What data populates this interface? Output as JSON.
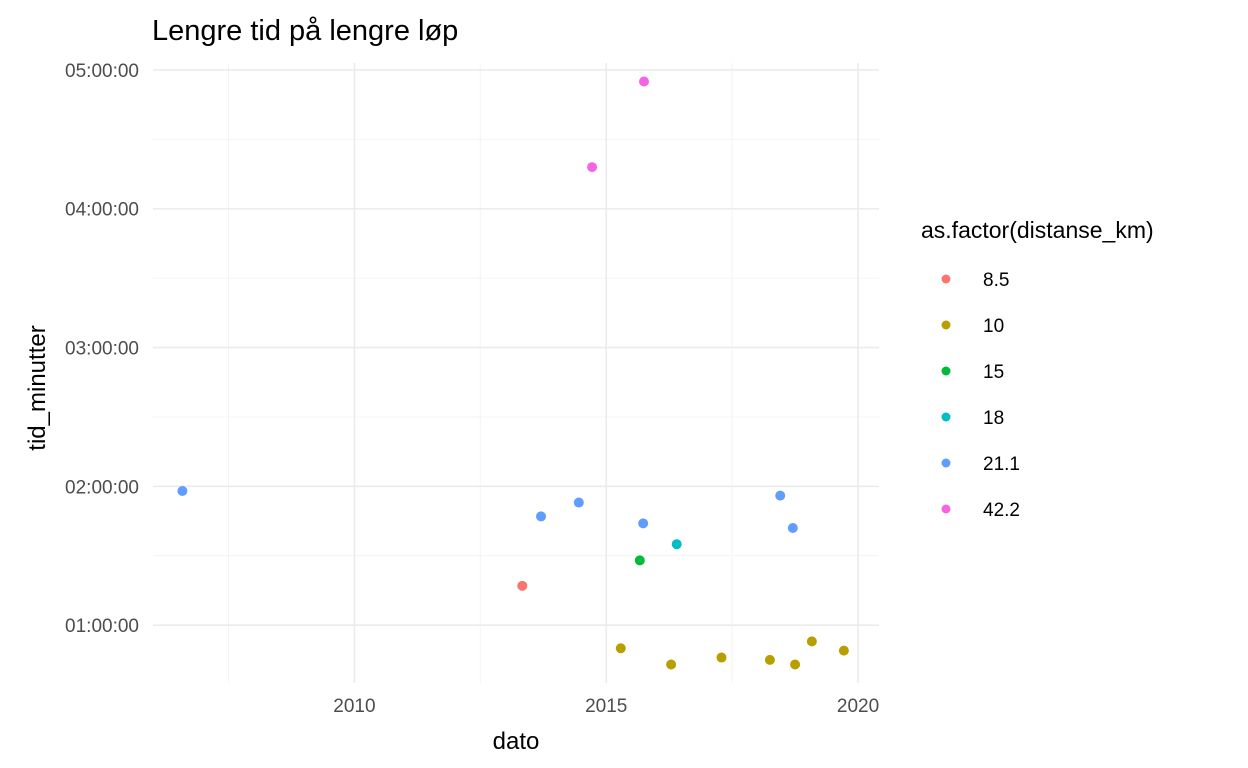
{
  "chart_data": {
    "type": "scatter",
    "title": "Lengre tid på lengre løp",
    "xlabel": "dato",
    "ylabel": "tid_minutter",
    "x_axis": {
      "type": "date",
      "range": [
        "2006-01-01",
        "2020-06-01"
      ],
      "ticks": [
        "2010",
        "2015",
        "2020"
      ]
    },
    "y_axis": {
      "range_minutes": [
        35,
        303
      ],
      "ticks": [
        "01:00:00",
        "02:00:00",
        "03:00:00",
        "04:00:00",
        "05:00:00"
      ],
      "tick_minutes": [
        60,
        120,
        180,
        240,
        300
      ]
    },
    "grid": true,
    "legend": {
      "title": "as.factor(distanse_km)",
      "position": "right",
      "entries": [
        {
          "label": "8.5",
          "color": "#F8766D"
        },
        {
          "label": "10",
          "color": "#B79F00"
        },
        {
          "label": "15",
          "color": "#00BA38"
        },
        {
          "label": "18",
          "color": "#00BFC4"
        },
        {
          "label": "21.1",
          "color": "#619CFF"
        },
        {
          "label": "42.2",
          "color": "#F564E3"
        }
      ]
    },
    "series": [
      {
        "name": "8.5",
        "color": "#F8766D",
        "points": [
          {
            "x": "2013-05-01",
            "y": 77
          }
        ]
      },
      {
        "name": "10",
        "color": "#B79F00",
        "points": [
          {
            "x": "2015-04-15",
            "y": 50
          },
          {
            "x": "2016-04-15",
            "y": 43
          },
          {
            "x": "2017-04-15",
            "y": 46
          },
          {
            "x": "2018-04-01",
            "y": 45
          },
          {
            "x": "2018-10-01",
            "y": 43
          },
          {
            "x": "2019-02-01",
            "y": 53
          },
          {
            "x": "2019-09-20",
            "y": 49
          }
        ]
      },
      {
        "name": "15",
        "color": "#00BA38",
        "points": [
          {
            "x": "2015-09-01",
            "y": 88
          }
        ]
      },
      {
        "name": "18",
        "color": "#00BFC4",
        "points": [
          {
            "x": "2016-05-25",
            "y": 95
          }
        ]
      },
      {
        "name": "21.1",
        "color": "#619CFF",
        "points": [
          {
            "x": "2006-08-01",
            "y": 118
          },
          {
            "x": "2013-09-15",
            "y": 107
          },
          {
            "x": "2014-06-15",
            "y": 113
          },
          {
            "x": "2015-09-25",
            "y": 104
          },
          {
            "x": "2018-06-15",
            "y": 116
          },
          {
            "x": "2018-09-15",
            "y": 102
          }
        ]
      },
      {
        "name": "42.2",
        "color": "#F564E3",
        "points": [
          {
            "x": "2014-09-20",
            "y": 258
          },
          {
            "x": "2015-10-01",
            "y": 295
          }
        ]
      }
    ]
  }
}
